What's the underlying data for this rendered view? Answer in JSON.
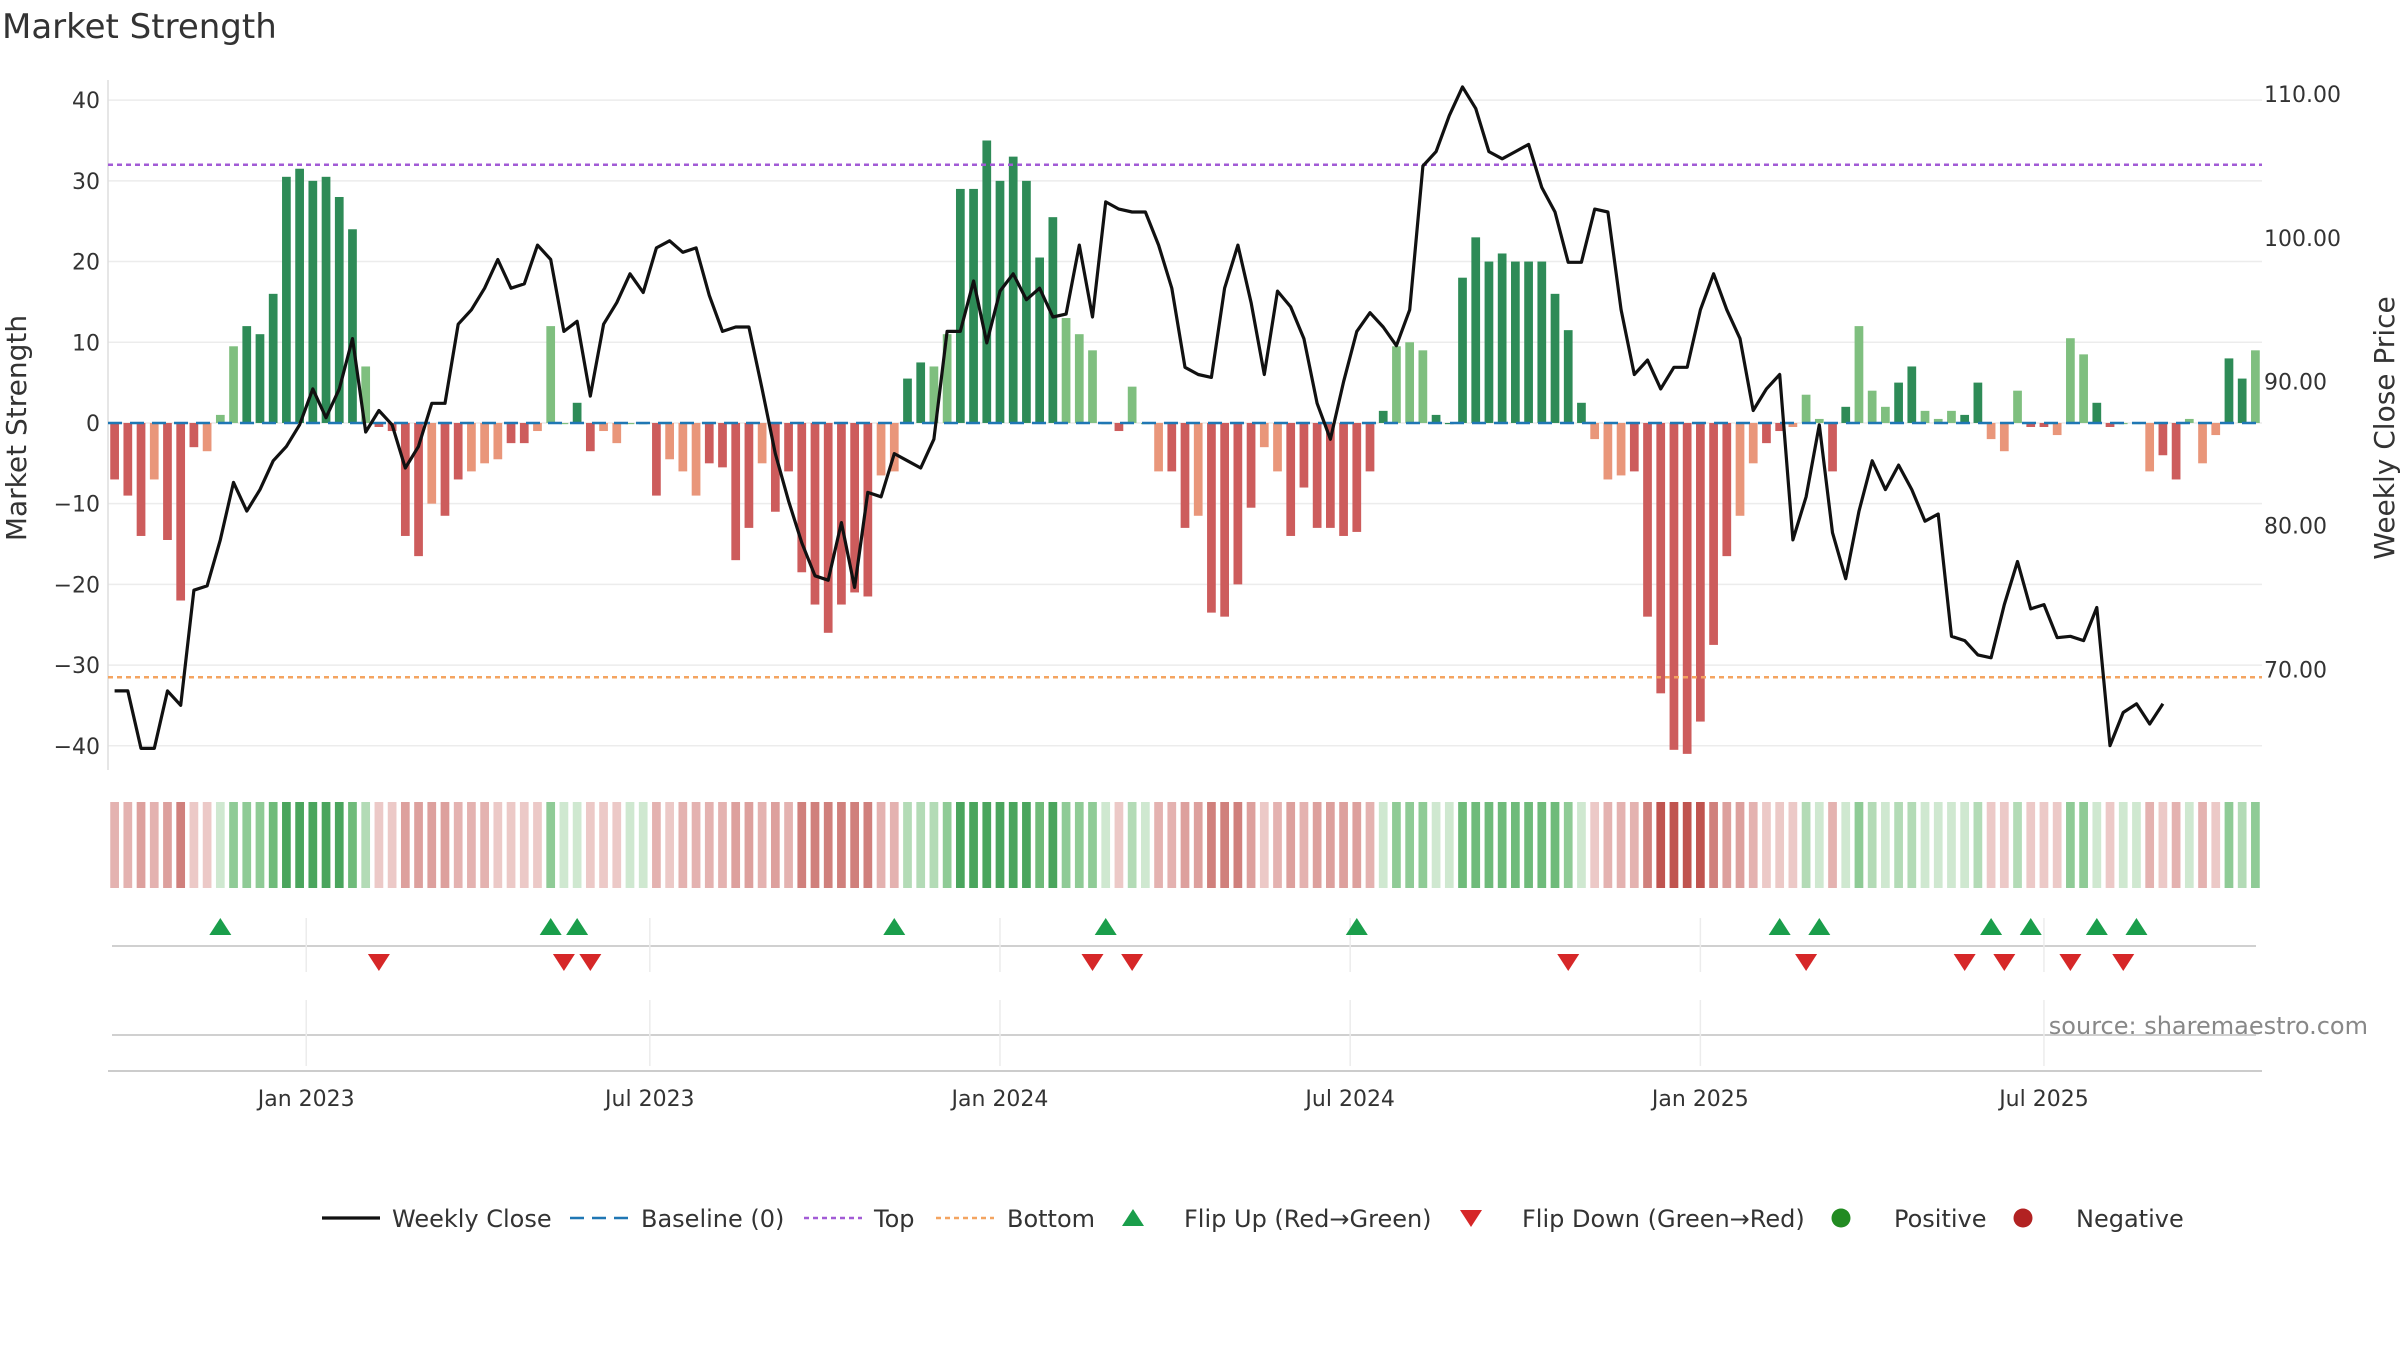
{
  "chart_data": {
    "type": "bar",
    "title": "Market Strength",
    "ylabel": "Market Strength",
    "y2label": "Weekly Close Price",
    "ylim": [
      -43,
      42
    ],
    "y2lim": [
      63.0,
      110.7
    ],
    "yticks": [
      40,
      30,
      20,
      10,
      0,
      -10,
      -20,
      -30,
      -40
    ],
    "yticklabels": [
      "40",
      "30",
      "20",
      "10",
      "0",
      "−10",
      "−20",
      "−30",
      "−40"
    ],
    "y2ticks": [
      110,
      100,
      90,
      80,
      70
    ],
    "y2ticklabels": [
      "110.00",
      "100.00",
      "90.00",
      "80.00",
      "70.00"
    ],
    "top_level": 32,
    "bottom_level": -31.5,
    "x_ticks": [
      {
        "label": "Jan 2023",
        "week": 15
      },
      {
        "label": "Jul 2023",
        "week": 41
      },
      {
        "label": "Jan 2024",
        "week": 67.5
      },
      {
        "label": "Jul 2024",
        "week": 94
      },
      {
        "label": "Jan 2025",
        "week": 120.5
      },
      {
        "label": "Jul 2025",
        "week": 146.5
      }
    ],
    "strength": [
      -7,
      -9,
      -14,
      -7,
      -14.5,
      -22,
      -3,
      -3.5,
      1,
      9.5,
      12,
      11,
      16,
      30.5,
      31.5,
      30,
      30.5,
      28,
      24,
      7,
      -0.5,
      -1,
      -14,
      -16.5,
      -10,
      -11.5,
      -7,
      -6,
      -5,
      -4.5,
      -2.5,
      -2.5,
      -1,
      12,
      0,
      2.5,
      -3.5,
      -1,
      -2.5,
      0,
      0,
      -9,
      -4.5,
      -6,
      -9,
      -5,
      -5.5,
      -17,
      -13,
      -5,
      -11,
      -6,
      -18.5,
      -22.5,
      -26,
      -22.5,
      -21,
      -21.5,
      -6.5,
      -6,
      5.5,
      7.5,
      7,
      11,
      29,
      29,
      35,
      30,
      33,
      30,
      20.5,
      25.5,
      13,
      11,
      9,
      0,
      -1,
      4.5,
      0,
      -6,
      -6,
      -13,
      -11.5,
      -23.5,
      -24,
      -20,
      -10.5,
      -3,
      -6,
      -14,
      -8,
      -13,
      -13,
      -14,
      -13.5,
      -6,
      1.5,
      9.5,
      10,
      9,
      1,
      0,
      18,
      23,
      20,
      21,
      20,
      20,
      20,
      16,
      11.5,
      2.5,
      -2,
      -7,
      -6.5,
      -6,
      -24,
      -33.5,
      -40.5,
      -41,
      -37,
      -27.5,
      -16.5,
      -11.5,
      -5,
      -2.5,
      -1,
      -0.5,
      3.5,
      0.5,
      -6,
      2,
      12,
      4,
      2,
      5,
      7,
      1.5,
      0.5,
      1.5,
      1,
      5,
      -2,
      -3.5,
      4,
      -0.5,
      -0.5,
      -1.5,
      10.5,
      8.5,
      2.5,
      -0.5,
      0,
      0,
      -6,
      -4,
      -7,
      0.5,
      -5,
      -1.5,
      8,
      5.5,
      9
    ],
    "weekly_close": [
      68.5,
      68.5,
      64.5,
      64.5,
      68.5,
      67.5,
      75.5,
      75.8,
      79,
      83,
      81,
      82.5,
      84.5,
      85.5,
      87,
      89.5,
      87.5,
      89.5,
      93,
      86.5,
      88,
      87,
      84,
      85.5,
      88.5,
      88.5,
      94,
      95,
      96.5,
      98.5,
      96.5,
      96.8,
      99.5,
      98.5,
      93.5,
      94.2,
      89,
      94,
      95.5,
      97.5,
      96.2,
      99.3,
      99.8,
      99,
      99.3,
      96,
      93.5,
      93.8,
      93.8,
      89.5,
      85,
      81.7,
      78.8,
      76.5,
      76.2,
      80.2,
      75.7,
      82.3,
      82,
      85,
      84.5,
      84,
      86,
      93.5,
      93.5,
      97,
      92.7,
      96.3,
      97.5,
      95.7,
      96.5,
      94.5,
      94.7,
      99.5,
      94.5,
      102.5,
      102,
      101.8,
      101.8,
      99.5,
      96.5,
      91,
      90.5,
      90.3,
      96.5,
      99.5,
      95.5,
      90.5,
      96.3,
      95.2,
      93,
      88.5,
      86,
      90,
      93.5,
      94.8,
      93.8,
      92.5,
      95,
      105,
      106,
      108.5,
      110.5,
      109,
      106,
      105.5,
      106,
      106.5,
      103.5,
      101.8,
      98.3,
      98.3,
      102,
      101.8,
      95,
      90.5,
      91.5,
      89.5,
      91,
      91,
      95,
      97.5,
      95,
      93,
      88,
      89.5,
      90.5,
      79,
      82,
      87,
      79.5,
      76.3,
      81,
      84.5,
      82.5,
      84.2,
      82.5,
      80.3,
      80.8,
      72.3,
      72,
      71,
      70.8,
      74.5,
      77.5,
      74.2,
      74.5,
      72.2,
      72.3,
      72,
      74.3,
      64.7,
      67,
      67.6,
      66.2,
      67.6
    ],
    "flip_up_weeks": [
      8,
      33,
      35,
      59,
      75,
      94,
      126,
      129,
      142,
      145,
      150,
      153
    ],
    "flip_down_weeks": [
      20,
      34,
      36,
      74,
      77,
      110,
      128,
      140,
      143,
      148,
      152
    ],
    "colors": {
      "bar_dark_green": "#2e8b57",
      "bar_light_green": "#7fbf7f",
      "bar_dark_red": "#cd5c5c",
      "bar_light_red": "#e9967a",
      "line": "#111111",
      "baseline": "#1f77b4",
      "top": "#a25bd6",
      "bottom": "#f4a460",
      "flip_up": "#1a9e4b",
      "flip_down": "#d62728",
      "positive": "#228b22",
      "negative": "#b22222"
    },
    "legend": [
      {
        "label": "Weekly Close",
        "kind": "line"
      },
      {
        "label": "Baseline (0)",
        "kind": "dashed"
      },
      {
        "label": "Top",
        "kind": "dotted-top"
      },
      {
        "label": "Bottom",
        "kind": "dotted-bottom"
      },
      {
        "label": "Flip Up (Red→Green)",
        "kind": "tri-up"
      },
      {
        "label": "Flip Down (Green→Red)",
        "kind": "tri-down"
      },
      {
        "label": "Positive",
        "kind": "dot-pos"
      },
      {
        "label": "Negative",
        "kind": "dot-neg"
      }
    ],
    "source": "source: sharemaestro.com"
  }
}
